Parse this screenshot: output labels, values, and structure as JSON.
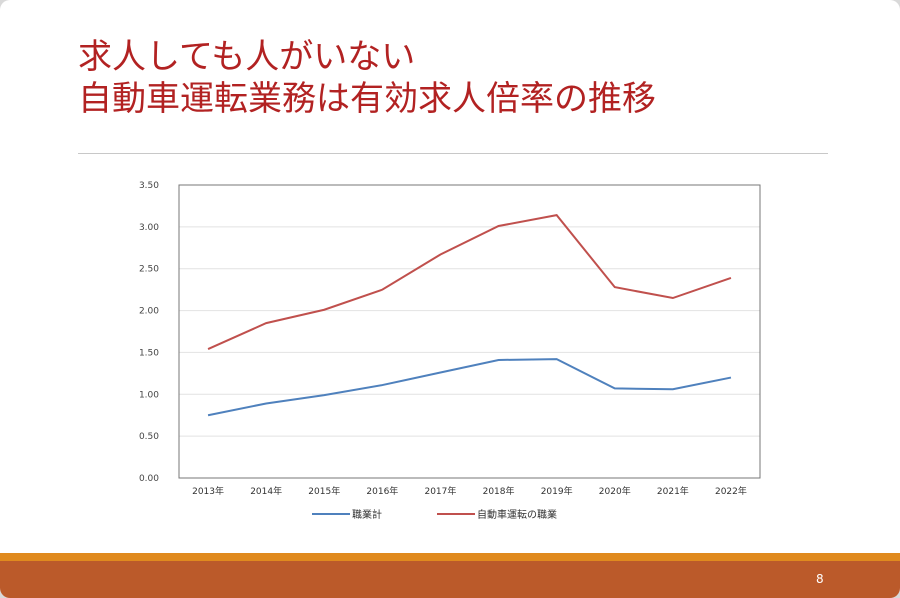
{
  "slide": {
    "title_line1": "求人しても人がいない",
    "title_line2": "自動車運転業務は有効求人倍率の推移",
    "page_number": "8"
  },
  "chart_data": {
    "type": "line",
    "title": "",
    "xlabel": "",
    "ylabel": "",
    "categories": [
      "2013年",
      "2014年",
      "2015年",
      "2016年",
      "2017年",
      "2018年",
      "2019年",
      "2020年",
      "2021年",
      "2022年"
    ],
    "ylim": [
      0,
      3.5
    ],
    "yticks": [
      "0.00",
      "0.50",
      "1.00",
      "1.50",
      "2.00",
      "2.50",
      "3.00",
      "3.50"
    ],
    "grid": true,
    "legend": "bottom",
    "series": [
      {
        "name": "職業計",
        "color": "#4f81bd",
        "values": [
          0.75,
          0.89,
          0.99,
          1.11,
          1.26,
          1.41,
          1.42,
          1.07,
          1.06,
          1.2
        ]
      },
      {
        "name": "自動車運転の職業",
        "color": "#c0504d",
        "values": [
          1.54,
          1.85,
          2.01,
          2.25,
          2.67,
          3.01,
          3.14,
          2.28,
          2.15,
          2.39
        ]
      }
    ]
  }
}
